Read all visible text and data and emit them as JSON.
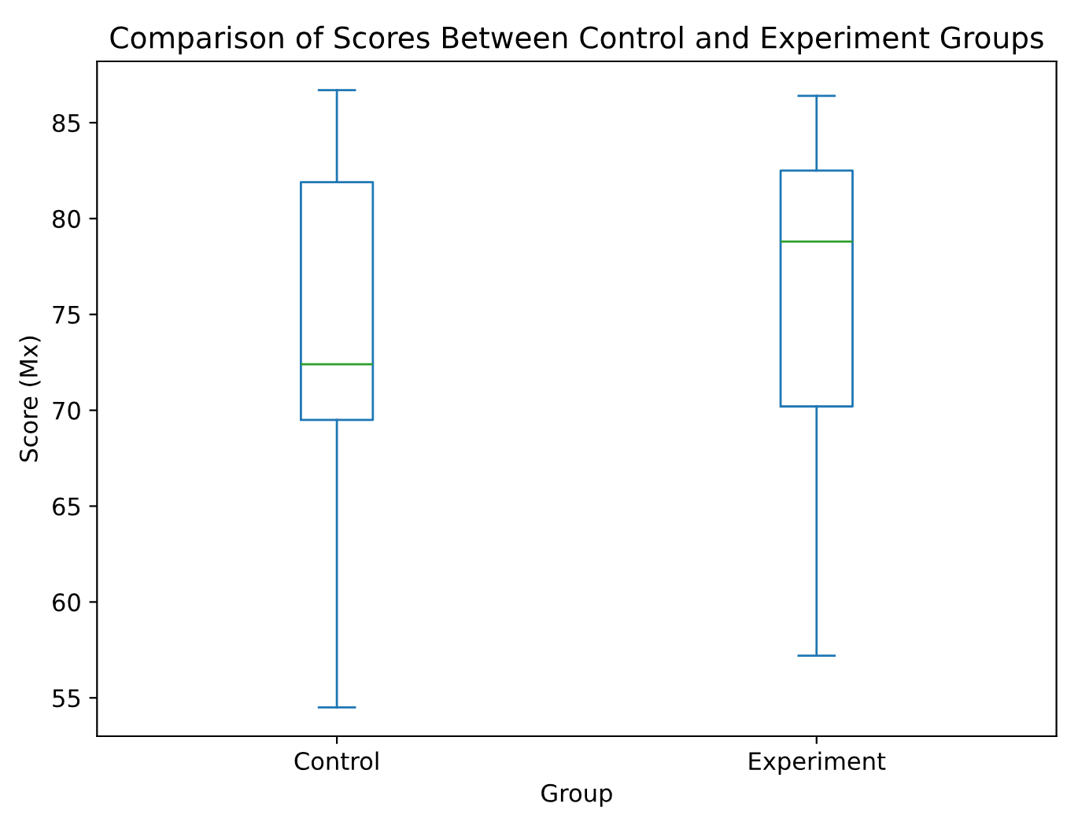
{
  "chart_data": {
    "type": "box",
    "title": "Comparison of Scores Between Control and Experiment Groups",
    "xlabel": "Group",
    "ylabel": "Score (Mx)",
    "categories": [
      "Control",
      "Experiment"
    ],
    "boxes": [
      {
        "low": 54.5,
        "q1": 69.5,
        "median": 72.4,
        "q3": 81.9,
        "high": 86.7
      },
      {
        "low": 57.2,
        "q1": 70.2,
        "median": 78.8,
        "q3": 82.5,
        "high": 86.4
      }
    ],
    "color": "#1f77b4",
    "ylim": [
      53.0,
      88.2
    ],
    "yticks": [
      55,
      60,
      65,
      70,
      75,
      80,
      85
    ],
    "grid": false
  }
}
